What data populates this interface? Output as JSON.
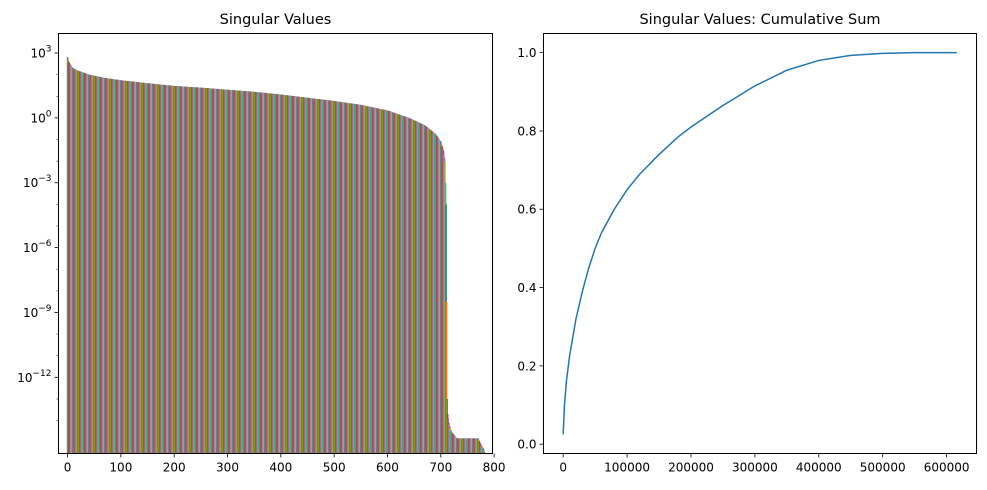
{
  "chart_data": [
    {
      "type": "line",
      "title": "Singular Values",
      "xlabel": "",
      "ylabel": "",
      "yscale": "log",
      "xlim": [
        -17,
        797
      ],
      "ylim": [
        3e-16,
        8000
      ],
      "x_ticks": [
        0,
        100,
        200,
        300,
        400,
        500,
        600,
        700,
        800
      ],
      "y_ticks": [
        {
          "value": 1000,
          "base": "10",
          "exp": "3"
        },
        {
          "value": 1,
          "base": "10",
          "exp": "0"
        },
        {
          "value": 0.001,
          "base": "10",
          "exp": "−3"
        },
        {
          "value": 1e-06,
          "base": "10",
          "exp": "−6"
        },
        {
          "value": 1e-09,
          "base": "10",
          "exp": "−9"
        },
        {
          "value": 1e-12,
          "base": "10",
          "exp": "−12"
        }
      ],
      "series_colors": [
        "#1f77b4",
        "#ff7f0e",
        "#2ca02c",
        "#d62728",
        "#9467bd",
        "#8c564b",
        "#e377c2",
        "#7f7f7f",
        "#bcbd22",
        "#17becf"
      ],
      "n_series": 784,
      "profile": {
        "x": [
          0,
          2,
          5,
          10,
          20,
          40,
          70,
          100,
          150,
          200,
          250,
          300,
          350,
          400,
          450,
          500,
          550,
          600,
          640,
          670,
          690,
          700,
          705,
          708,
          710,
          712,
          713,
          715,
          720,
          730,
          740,
          770,
          775,
          780,
          783
        ],
        "y": [
          650,
          400,
          300,
          200,
          150,
          100,
          70,
          55,
          40,
          30,
          25,
          20,
          16,
          12,
          8.5,
          6.0,
          4.0,
          2.2,
          1.0,
          0.45,
          0.18,
          0.08,
          0.03,
          0.01,
          0.0001,
          1e-13,
          2e-14,
          8e-15,
          3e-15,
          1.5e-15,
          1.5e-15,
          1.5e-15,
          8e-16,
          5e-16,
          3e-16
        ]
      }
    },
    {
      "type": "line",
      "title": "Singular Values: Cumulative Sum",
      "xlabel": "",
      "ylabel": "",
      "xlim": [
        -30800,
        646800
      ],
      "ylim": [
        -0.0238,
        1.0488
      ],
      "x_ticks": [
        0,
        100000,
        200000,
        300000,
        400000,
        500000,
        600000
      ],
      "y_ticks": [
        0.0,
        0.2,
        0.4,
        0.6,
        0.8,
        1.0
      ],
      "color": "#1f77b4",
      "series": {
        "x": [
          0,
          2000,
          5000,
          10000,
          20000,
          30000,
          40000,
          50000,
          60000,
          80000,
          100000,
          120000,
          150000,
          180000,
          200000,
          250000,
          300000,
          350000,
          400000,
          450000,
          500000,
          550000,
          600000,
          616000
        ],
        "y": [
          0.025,
          0.1,
          0.16,
          0.225,
          0.32,
          0.39,
          0.45,
          0.5,
          0.54,
          0.6,
          0.65,
          0.69,
          0.74,
          0.785,
          0.81,
          0.865,
          0.915,
          0.955,
          0.98,
          0.993,
          0.998,
          1.0,
          1.0,
          1.0
        ]
      }
    }
  ]
}
